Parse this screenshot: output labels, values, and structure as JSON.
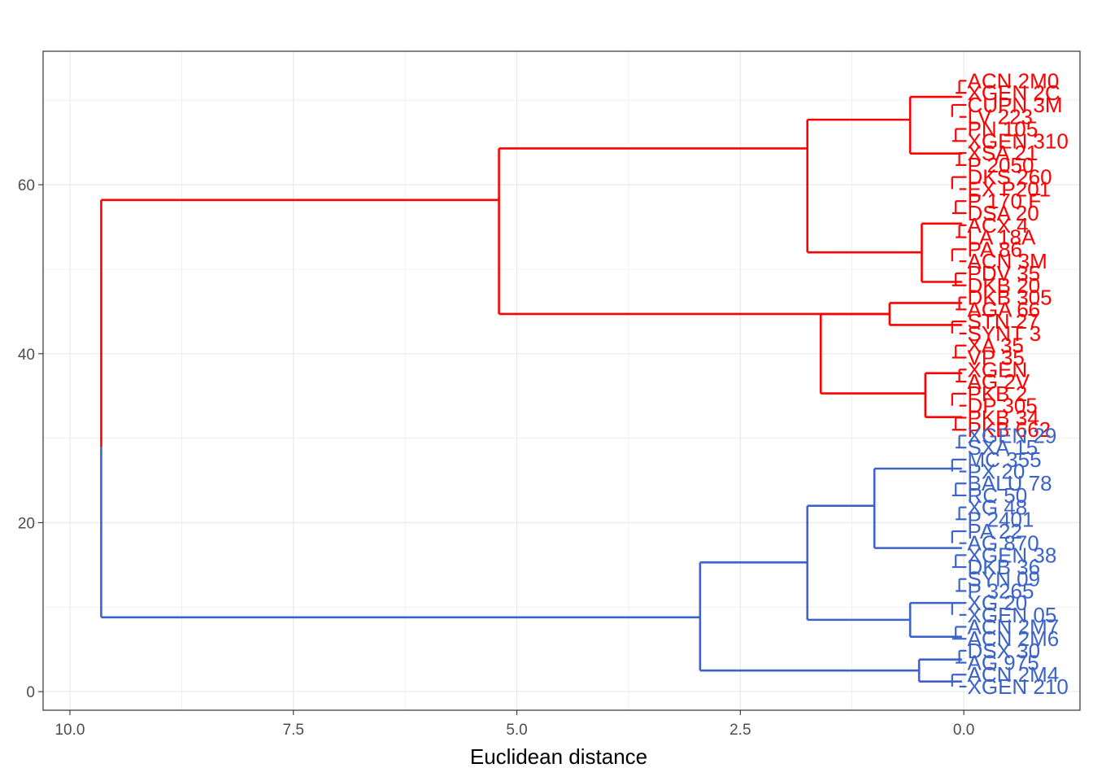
{
  "chart_data": {
    "type": "dendrogram",
    "orientation": "horizontal",
    "title": "",
    "xlabel": "Euclidean distance",
    "ylabel": "",
    "xlim": [
      10.3,
      -1.3
    ],
    "ylim": [
      -2.2,
      75.8
    ],
    "x_ticks": [
      10.0,
      7.5,
      5.0,
      2.5,
      0.0
    ],
    "x_tick_labels": [
      "10.0",
      "7.5",
      "5.0",
      "2.5",
      "0.0"
    ],
    "y_ticks": [
      0,
      20,
      40,
      60
    ],
    "y_tick_labels": [
      "0",
      "20",
      "40",
      "60"
    ],
    "grid": true,
    "colors": {
      "cluster_1": "#ff0000",
      "cluster_2": "#3b63c9",
      "grid": "#ebebeb",
      "tick_text": "#4d4d4d",
      "frame": "#333333"
    },
    "clusters": [
      {
        "name": "",
        "color": "#ff0000",
        "merges": [
          {
            "height": 5.2,
            "y1": 44.7,
            "y2": 64.3,
            "mid": 58.2
          },
          {
            "height": 1.75,
            "y1": 52.0,
            "y2": 67.7,
            "mid": 64.3
          },
          {
            "height": 0.6,
            "y1": 63.7,
            "y2": 70.4,
            "mid": 67.7
          },
          {
            "height": 0.47,
            "y1": 48.5,
            "y2": 55.4,
            "mid": 52.0
          },
          {
            "height": 1.6,
            "y1": 35.3,
            "y2": 44.7,
            "mid": 39.9
          },
          {
            "height": 0.83,
            "y1": 43.4,
            "y2": 46.0,
            "mid": 44.7
          },
          {
            "height": 0.43,
            "y1": 32.5,
            "y2": 37.7,
            "mid": 35.3
          }
        ],
        "leaves": [
          "ACN 2M0",
          "XGEN 2C",
          "CUPN 3M",
          "LV 223",
          "PN 105",
          "XGEN 310",
          "XSA 21",
          "P 2050",
          "DKS 260",
          "EX P201",
          "P 170 F",
          "DSA 20",
          "ACX 4",
          "LA 18A",
          "PA 86",
          "ACN 3M",
          "PDV 35",
          "DKB 20",
          "DKB 305",
          "AGA 66",
          "STN 27",
          "SYNT 3",
          "XA 35",
          "VP 35",
          "XGEN",
          "AG 2V",
          "PKB 2",
          "DP 305",
          "PKB 34",
          "PKB 662"
        ]
      },
      {
        "name": "",
        "color": "#3b63c9",
        "merges": [
          {
            "height": 2.95,
            "y1": 2.5,
            "y2": 15.3,
            "mid": 8.8
          },
          {
            "height": 1.75,
            "y1": 8.5,
            "y2": 22.0,
            "mid": 15.3
          },
          {
            "height": 1.0,
            "y1": 17.0,
            "y2": 26.4,
            "mid": 22.0
          },
          {
            "height": 0.6,
            "y1": 6.5,
            "y2": 10.5,
            "mid": 8.5
          },
          {
            "height": 0.5,
            "y1": 1.2,
            "y2": 3.8,
            "mid": 2.5
          }
        ],
        "leaves": [
          "XGEN 29",
          "SXA 15",
          "MC 355",
          "PX 20",
          "BALU 78",
          "RC 50",
          "XG 48",
          "P 2401",
          "PA 22",
          "AG 870",
          "XGEN 38",
          "DKB 36",
          "SYN 09",
          "P 3265",
          "XG 20",
          "XGEN 05",
          "ACN 2M7",
          "ACN 2M6",
          "DSX 30",
          "AG 975",
          "ACN 2M4",
          "XGEN 210"
        ]
      }
    ]
  }
}
